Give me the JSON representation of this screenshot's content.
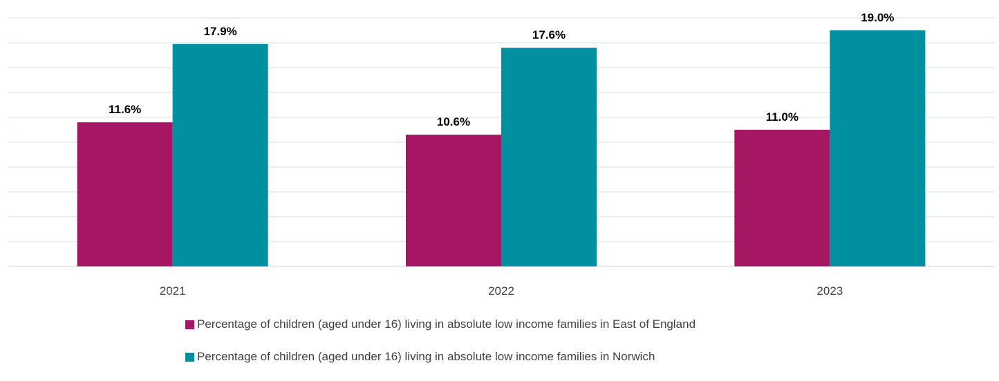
{
  "chart_data": {
    "type": "bar",
    "title": "",
    "xlabel": "",
    "ylabel": "",
    "ylim": [
      0,
      21
    ],
    "grid": true,
    "legend_position": "bottom",
    "categories": [
      "2021",
      "2022",
      "2023"
    ],
    "series": [
      {
        "name": "Percentage of children (aged under 16) living in absolute low income families in East of England",
        "values": [
          11.6,
          10.6,
          11.0
        ],
        "labels": [
          "11.6%",
          "10.6%",
          "11.0%"
        ],
        "color": "#A51762"
      },
      {
        "name": "Percentage of children (aged under 16) living in absolute low income families in Norwich",
        "values": [
          17.9,
          17.6,
          19.0
        ],
        "labels": [
          "17.9%",
          "17.6%",
          "19.0%"
        ],
        "color": "#00909F"
      }
    ],
    "gridline_color": "#D9E2EC",
    "axis_label_color": "#404040",
    "data_label_color": "#000000"
  }
}
